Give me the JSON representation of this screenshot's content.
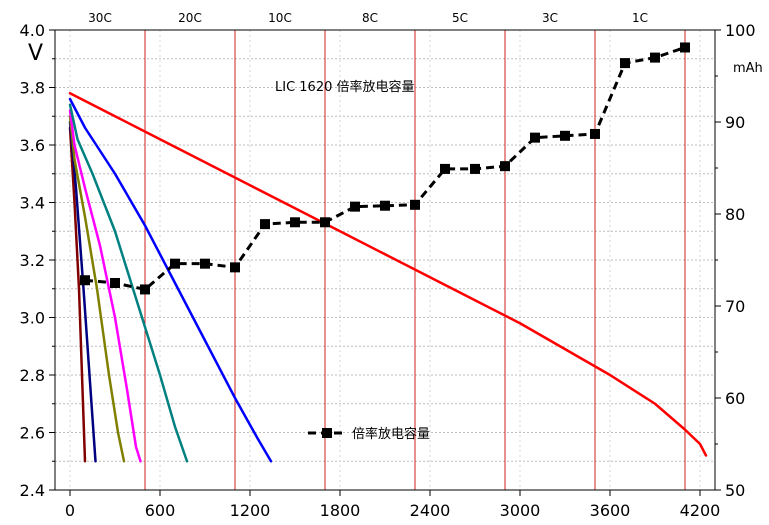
{
  "chart_data": {
    "type": "line",
    "title": "LIC 1620 倍率放电容量",
    "xlabel": "",
    "ylabel": "V",
    "y2label": "mAh",
    "xlim": [
      -100,
      4300
    ],
    "ylim": [
      2.4,
      4.0
    ],
    "y2lim": [
      50,
      100
    ],
    "x_ticks": [
      0,
      600,
      1200,
      1800,
      2400,
      3000,
      3600,
      4200
    ],
    "y_ticks": [
      2.4,
      2.6,
      2.8,
      3.0,
      3.2,
      3.4,
      3.6,
      3.8,
      4.0
    ],
    "y_tick_labels": [
      "2.4",
      "2.6",
      "2.8",
      "3.0",
      "3.2",
      "3.4",
      "3.6",
      "3.8",
      "4.0"
    ],
    "y2_ticks": [
      50,
      60,
      70,
      80,
      90,
      100
    ],
    "grid": true,
    "rate_labels": [
      {
        "label": "30C",
        "x": 200
      },
      {
        "label": "20C",
        "x": 800
      },
      {
        "label": "10C",
        "x": 1400
      },
      {
        "label": "8C",
        "x": 2000
      },
      {
        "label": "5C",
        "x": 2600
      },
      {
        "label": "3C",
        "x": 3200
      },
      {
        "label": "1C",
        "x": 3800
      }
    ],
    "rate_dividers": [
      500,
      1100,
      1700,
      2300,
      2900,
      3500,
      4100
    ],
    "legend": {
      "position": "bottom-center",
      "label": "倍率放电容量"
    },
    "capacity_series": {
      "name": "倍率放电容量",
      "color": "#000000",
      "axis": "right",
      "points": [
        [
          100,
          72.8
        ],
        [
          300,
          72.5
        ],
        [
          500,
          71.8
        ],
        [
          700,
          74.6
        ],
        [
          900,
          74.6
        ],
        [
          1100,
          74.2
        ],
        [
          1300,
          78.9
        ],
        [
          1500,
          79.1
        ],
        [
          1700,
          79.1
        ],
        [
          1900,
          80.8
        ],
        [
          2100,
          80.9
        ],
        [
          2300,
          81.0
        ],
        [
          2500,
          84.9
        ],
        [
          2700,
          84.9
        ],
        [
          2900,
          85.2
        ],
        [
          3100,
          88.3
        ],
        [
          3300,
          88.5
        ],
        [
          3500,
          88.7
        ],
        [
          3700,
          96.4
        ],
        [
          3900,
          97.0
        ],
        [
          4100,
          98.1
        ]
      ]
    },
    "series": [
      {
        "color": "#800000",
        "points": [
          [
            0,
            3.66
          ],
          [
            30,
            3.4
          ],
          [
            60,
            3.1
          ],
          [
            80,
            2.8
          ],
          [
            100,
            2.5
          ]
        ]
      },
      {
        "color": "#000080",
        "points": [
          [
            0,
            3.68
          ],
          [
            40,
            3.45
          ],
          [
            90,
            3.1
          ],
          [
            130,
            2.8
          ],
          [
            170,
            2.5
          ]
        ]
      },
      {
        "color": "#808000",
        "points": [
          [
            0,
            3.7
          ],
          [
            30,
            3.55
          ],
          [
            100,
            3.35
          ],
          [
            180,
            3.1
          ],
          [
            260,
            2.8
          ],
          [
            320,
            2.6
          ],
          [
            360,
            2.5
          ]
        ]
      },
      {
        "color": "#FF00FF",
        "points": [
          [
            0,
            3.72
          ],
          [
            30,
            3.6
          ],
          [
            100,
            3.45
          ],
          [
            200,
            3.25
          ],
          [
            300,
            3.0
          ],
          [
            380,
            2.75
          ],
          [
            440,
            2.55
          ],
          [
            470,
            2.5
          ]
        ]
      },
      {
        "color": "#008080",
        "points": [
          [
            0,
            3.74
          ],
          [
            50,
            3.62
          ],
          [
            150,
            3.5
          ],
          [
            300,
            3.3
          ],
          [
            450,
            3.05
          ],
          [
            600,
            2.8
          ],
          [
            700,
            2.62
          ],
          [
            780,
            2.5
          ]
        ]
      },
      {
        "color": "#0000FF",
        "points": [
          [
            0,
            3.76
          ],
          [
            100,
            3.66
          ],
          [
            300,
            3.5
          ],
          [
            500,
            3.32
          ],
          [
            700,
            3.12
          ],
          [
            900,
            2.92
          ],
          [
            1100,
            2.72
          ],
          [
            1250,
            2.58
          ],
          [
            1340,
            2.5
          ]
        ]
      },
      {
        "color": "#FF0000",
        "points": [
          [
            0,
            3.78
          ],
          [
            300,
            3.7
          ],
          [
            600,
            3.62
          ],
          [
            900,
            3.54
          ],
          [
            1200,
            3.46
          ],
          [
            1500,
            3.38
          ],
          [
            1800,
            3.3
          ],
          [
            2100,
            3.22
          ],
          [
            2400,
            3.14
          ],
          [
            2700,
            3.06
          ],
          [
            3000,
            2.98
          ],
          [
            3300,
            2.89
          ],
          [
            3600,
            2.8
          ],
          [
            3900,
            2.7
          ],
          [
            4100,
            2.61
          ],
          [
            4200,
            2.56
          ],
          [
            4240,
            2.52
          ]
        ]
      }
    ]
  }
}
